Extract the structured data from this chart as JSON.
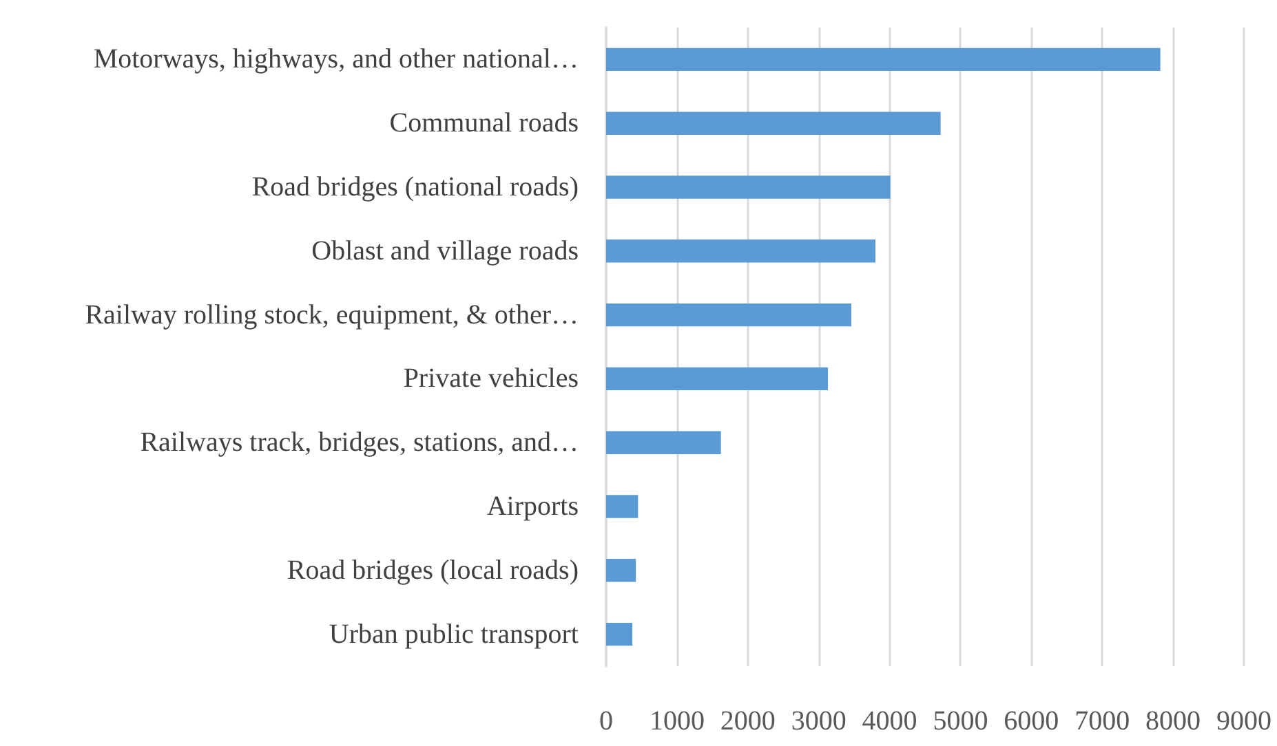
{
  "chart_data": {
    "type": "bar",
    "orientation": "horizontal",
    "categories": [
      "Motorways, highways, and other national…",
      "Communal roads",
      "Road bridges (national roads)",
      "Oblast and village roads",
      "Railway rolling stock, equipment, & other…",
      "Private vehicles",
      "Railways track, bridges, stations, and…",
      "Airports",
      "Road bridges (local roads)",
      "Urban public transport"
    ],
    "values": [
      7820,
      4720,
      4010,
      3800,
      3460,
      3130,
      1620,
      450,
      420,
      370
    ],
    "color": "#5b9bd5",
    "xlim": [
      0,
      9000
    ],
    "xticks": [
      0,
      1000,
      2000,
      3000,
      4000,
      5000,
      6000,
      7000,
      8000,
      9000
    ],
    "grid": "x"
  }
}
